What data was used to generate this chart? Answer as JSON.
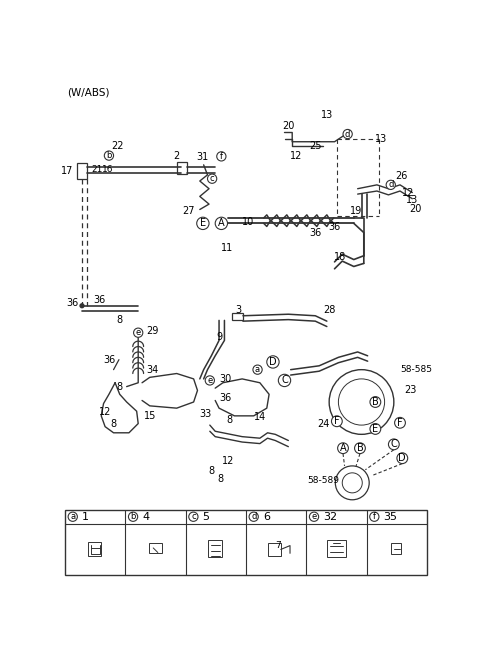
{
  "title": "(W/ABS)",
  "bg_color": "#ffffff",
  "line_color": "#333333",
  "text_color": "#000000",
  "fig_width": 4.8,
  "fig_height": 6.55,
  "dpi": 100,
  "table": {
    "headers": [
      [
        "a",
        "1"
      ],
      [
        "b",
        "4"
      ],
      [
        "c",
        "5"
      ],
      [
        "d",
        "6"
      ],
      [
        "e",
        "32"
      ],
      [
        "f",
        "35"
      ]
    ],
    "note_d": "7"
  }
}
